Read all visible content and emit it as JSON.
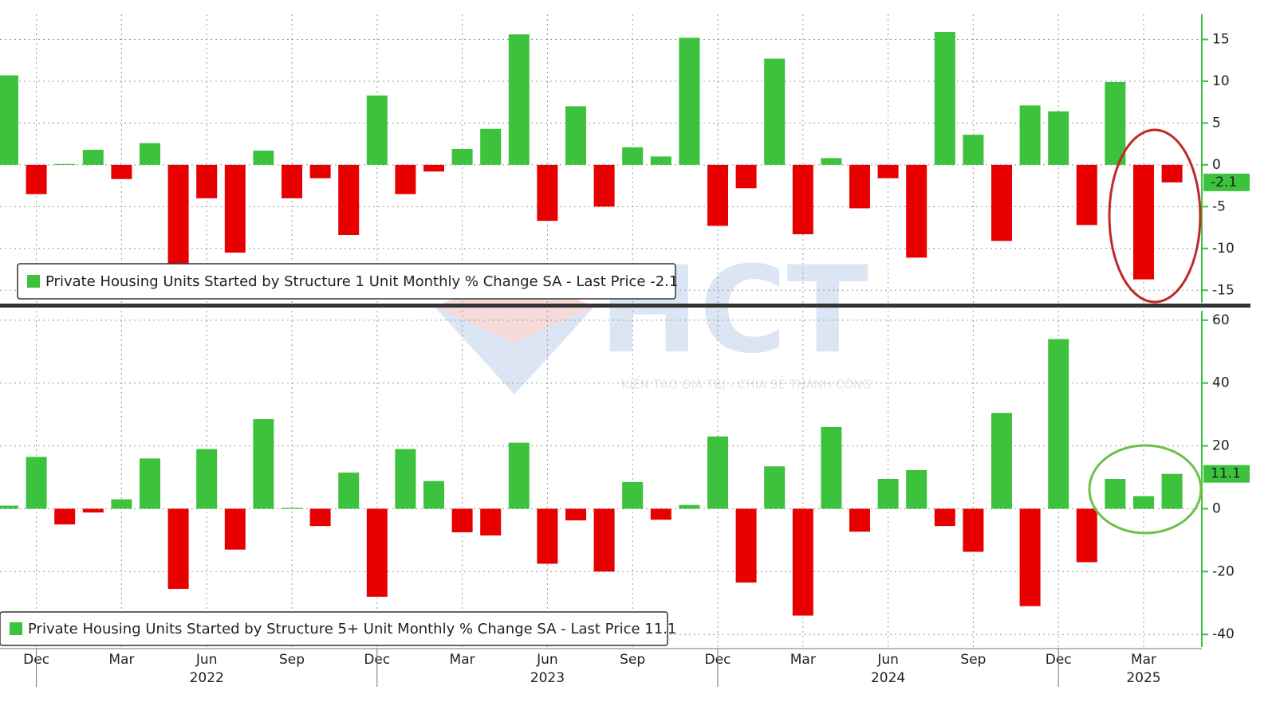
{
  "watermark": {
    "logo": "HCT",
    "tagline": "KIẾN TẠO GIÁ TRỊ - CHIA SẺ THÀNH CÔNG"
  },
  "chart_data": [
    {
      "type": "bar",
      "legend_label": "Private Housing Units Started by Structure 1 Unit Monthly % Change SA - Last Price -2.1",
      "positive_color": "#3cc23c",
      "negative_color": "#e80000",
      "values": [
        10.7,
        -3.5,
        0.1,
        1.8,
        -1.7,
        2.6,
        -11.8,
        -4,
        -10.5,
        1.7,
        -4,
        -1.6,
        -8.4,
        8.3,
        -3.5,
        -0.8,
        1.9,
        4.3,
        15.6,
        -6.7,
        7,
        -5,
        2.1,
        1,
        15.2,
        -7.3,
        -2.8,
        12.7,
        -8.3,
        0.8,
        -5.2,
        -1.6,
        -11.1,
        15.9,
        3.6,
        -9.1,
        7.1,
        6.4,
        -7.2,
        9.9,
        -13.7,
        -2.1
      ],
      "ylim": [
        -16.5,
        18
      ],
      "yticks": [
        15,
        10,
        5,
        0,
        -5,
        -10,
        -15
      ],
      "grid": true
    },
    {
      "type": "bar",
      "legend_label": "Private Housing Units Started by Structure 5+ Unit Monthly % Change SA - Last Price 11.1",
      "positive_color": "#3cc23c",
      "negative_color": "#e80000",
      "categories": [
        null,
        "Dec",
        null,
        null,
        "Mar",
        null,
        null,
        "Jun",
        null,
        null,
        "Sep",
        null,
        null,
        "Dec",
        null,
        null,
        "Mar",
        null,
        null,
        "Jun",
        null,
        null,
        "Sep",
        null,
        null,
        "Dec",
        null,
        null,
        "Mar",
        null,
        null,
        "Jun",
        null,
        null,
        "Sep",
        null,
        null,
        "Dec",
        null,
        null,
        "Mar",
        null
      ],
      "year_labels": [
        null,
        null,
        null,
        null,
        null,
        null,
        null,
        "2022",
        null,
        null,
        null,
        null,
        null,
        null,
        null,
        null,
        null,
        null,
        null,
        "2023",
        null,
        null,
        null,
        null,
        null,
        null,
        null,
        null,
        null,
        null,
        null,
        "2024",
        null,
        null,
        null,
        null,
        null,
        null,
        null,
        null,
        "2025",
        null
      ],
      "values": [
        1,
        16.5,
        -5,
        -1.2,
        3,
        16,
        -25.5,
        19,
        -13,
        28.5,
        0.3,
        -5.5,
        11.5,
        -28,
        19,
        8.8,
        -7.5,
        -8.5,
        21,
        -17.5,
        -3.7,
        -20,
        8.5,
        -3.5,
        1.2,
        23,
        -23.5,
        13.5,
        -34,
        26,
        -7.3,
        9.5,
        12.3,
        -5.5,
        -13.7,
        30.5,
        -31,
        54,
        -17,
        9.5,
        4,
        11.1
      ],
      "ylim": [
        -44,
        63
      ],
      "yticks": [
        60,
        40,
        20,
        0,
        -20,
        -40
      ],
      "grid": true
    }
  ]
}
